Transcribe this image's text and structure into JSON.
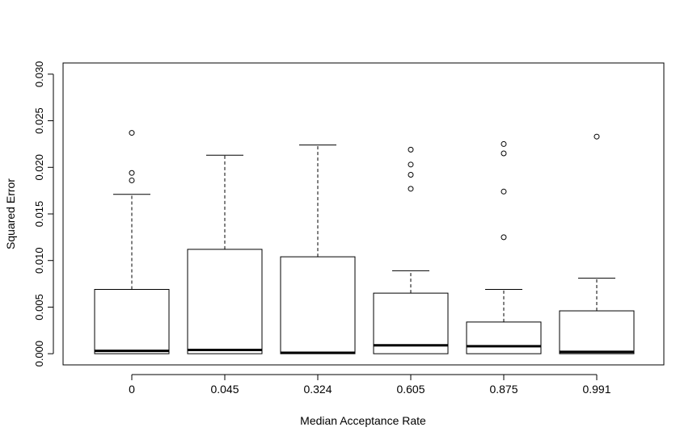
{
  "chart_data": {
    "type": "boxplot",
    "title": "",
    "xlabel": "Median Acceptance Rate",
    "ylabel": "Squared Error",
    "ylim": [
      -0.0012,
      0.0312
    ],
    "yticks": [
      0.0,
      0.005,
      0.01,
      0.015,
      0.02,
      0.025,
      0.03
    ],
    "ytick_labels": [
      "0.000",
      "0.005",
      "0.010",
      "0.015",
      "0.020",
      "0.025",
      "0.030"
    ],
    "categories": [
      "0",
      "0.045",
      "0.324",
      "0.605",
      "0.875",
      "0.991"
    ],
    "boxes": [
      {
        "min": 0.0,
        "q1": 0.0,
        "median": 0.0003,
        "q3": 0.0069,
        "max": 0.0171,
        "outliers": [
          0.0186,
          0.0194,
          0.0237
        ]
      },
      {
        "min": 0.0,
        "q1": 0.0,
        "median": 0.0004,
        "q3": 0.0112,
        "max": 0.0213,
        "outliers": []
      },
      {
        "min": 0.0,
        "q1": 0.0,
        "median": 0.0001,
        "q3": 0.0104,
        "max": 0.0224,
        "outliers": []
      },
      {
        "min": 0.0,
        "q1": 0.0,
        "median": 0.0009,
        "q3": 0.0065,
        "max": 0.0089,
        "outliers": [
          0.0177,
          0.0192,
          0.0203,
          0.0219
        ]
      },
      {
        "min": 0.0,
        "q1": 0.0,
        "median": 0.0008,
        "q3": 0.0034,
        "max": 0.0069,
        "outliers": [
          0.0125,
          0.0174,
          0.0215,
          0.0225
        ]
      },
      {
        "min": 0.0,
        "q1": 0.0,
        "median": 0.0002,
        "q3": 0.0046,
        "max": 0.0081,
        "outliers": [
          0.0233
        ]
      }
    ],
    "grid": false
  }
}
